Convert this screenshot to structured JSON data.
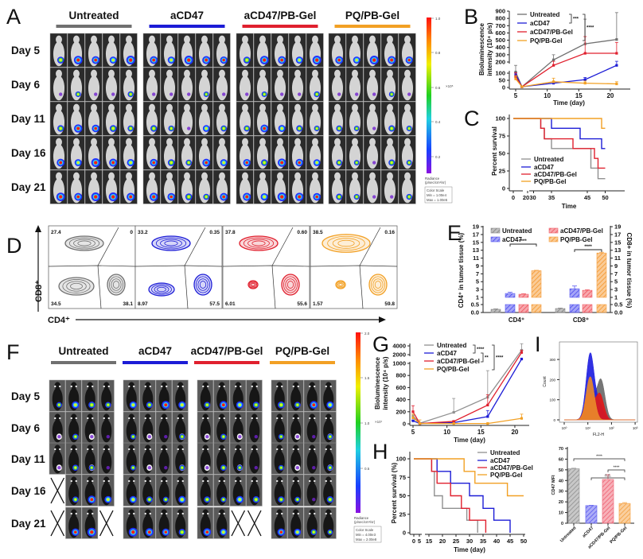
{
  "panel_labels": {
    "A": "A",
    "B": "B",
    "C": "C",
    "D": "D",
    "E": "E",
    "F": "F",
    "G": "G",
    "H": "H",
    "I": "I"
  },
  "groups": [
    "Untreated",
    "aCD47",
    "aCD47/PB-Gel",
    "PQ/PB-Gel"
  ],
  "group_colors": [
    "#707070",
    "#1c1cd6",
    "#e0202e",
    "#f2a024"
  ],
  "panel_a": {
    "days": [
      "Day 5",
      "Day 6",
      "Day 11",
      "Day 16",
      "Day 21"
    ],
    "mice_per_group": 5,
    "colorbar": {
      "ticks": [
        "1.0",
        "0.8",
        "0.6",
        "0.4",
        "0.2"
      ],
      "exponent": "×10⁵",
      "unit_1": "Radiance",
      "unit_2": "(p/sec/cm²/sr)",
      "scale_title": "Color Scale",
      "min": "Min = 1.00e4",
      "max": "Max = 1.00e5"
    }
  },
  "panel_d": {
    "x_label": "CD4⁺",
    "y_label": "CD8⁺",
    "plots": [
      {
        "group": "Untreated",
        "q_upper_left": "27.4",
        "q_upper_right": "0",
        "q_lower_left": "34.5",
        "q_lower_right": "38.1"
      },
      {
        "group": "aCD47",
        "q_upper_left": "33.2",
        "q_upper_right": "0.35",
        "q_lower_left": "8.97",
        "q_lower_right": "57.5"
      },
      {
        "group": "aCD47/PB-Gel",
        "q_upper_left": "37.8",
        "q_upper_right": "0.60",
        "q_lower_left": "6.01",
        "q_lower_right": "55.6"
      },
      {
        "group": "PQ/PB-Gel",
        "q_upper_left": "38.5",
        "q_upper_right": "0.16",
        "q_lower_left": "1.57",
        "q_lower_right": "59.8"
      }
    ]
  },
  "panel_f": {
    "days": [
      "Day 5",
      "Day 6",
      "Day 11",
      "Day 16",
      "Day 21"
    ],
    "mice_per_group": 4,
    "dead_mice": [
      {
        "day": 3,
        "group": 0,
        "mouse": 0
      },
      {
        "day": 4,
        "group": 0,
        "mouse": 0
      },
      {
        "day": 4,
        "group": 0,
        "mouse": 3
      },
      {
        "day": 4,
        "group": 2,
        "mouse": 2
      },
      {
        "day": 4,
        "group": 2,
        "mouse": 3
      }
    ],
    "colorbar": {
      "ticks": [
        "2.0",
        "1.5",
        "1.0",
        "0.5"
      ],
      "exponent": "×10⁷",
      "unit_1": "Radiance",
      "unit_2": "(p/sec/cm²/sr)",
      "scale_title": "Color Scale",
      "min": "Min = 4.00e3",
      "max": "Max = 2.00e8"
    }
  },
  "chart_data": [
    {
      "panel": "B",
      "type": "line",
      "xlabel": "Time (day)",
      "ylabel": [
        "Bioluminescence",
        "intensity (10⁴ p/s)"
      ],
      "x": [
        5,
        6,
        11,
        16,
        21
      ],
      "x_ticks": [
        5,
        10,
        15,
        20
      ],
      "y_ticks": [
        0,
        50,
        100,
        200,
        300,
        400,
        500,
        600,
        700,
        800,
        900
      ],
      "y_axis_break": [
        100,
        200
      ],
      "series": [
        {
          "name": "Untreated",
          "color": "#707070",
          "values": [
            110,
            5,
            230,
            450,
            510
          ],
          "errors": [
            60,
            5,
            70,
            340,
            370
          ]
        },
        {
          "name": "aCD47",
          "color": "#1c1cd6",
          "values": [
            90,
            5,
            30,
            55,
            170
          ],
          "errors": [
            15,
            3,
            10,
            15,
            40
          ]
        },
        {
          "name": "aCD47/PB-Gel",
          "color": "#e0202e",
          "values": [
            75,
            5,
            170,
            320,
            320
          ],
          "errors": [
            30,
            3,
            40,
            230,
            150
          ]
        },
        {
          "name": "PQ/PB-Gel",
          "color": "#f2a024",
          "values": [
            60,
            5,
            40,
            30,
            25
          ],
          "errors": [
            20,
            3,
            25,
            15,
            15
          ]
        }
      ],
      "significance": [
        "***",
        "****"
      ]
    },
    {
      "panel": "C",
      "type": "line",
      "xlabel": "Time",
      "ylabel": "Percent survival",
      "x_ticks": [
        "0",
        "20",
        "30",
        "35",
        "45",
        "50"
      ],
      "y_ticks": [
        0,
        25,
        50,
        75,
        100
      ],
      "series": [
        {
          "name": "Untreated",
          "color": "#909090",
          "steps": [
            [
              0,
              100
            ],
            [
              32,
              86
            ],
            [
              33,
              71
            ],
            [
              35,
              57
            ],
            [
              46,
              29
            ],
            [
              48,
              14
            ],
            [
              50,
              14
            ]
          ]
        },
        {
          "name": "aCD47",
          "color": "#1c1cd6",
          "steps": [
            [
              0,
              100
            ],
            [
              35,
              86
            ],
            [
              43,
              71
            ],
            [
              49,
              57
            ],
            [
              50,
              57
            ]
          ]
        },
        {
          "name": "aCD47/PB-Gel",
          "color": "#e0202e",
          "steps": [
            [
              0,
              100
            ],
            [
              32,
              86
            ],
            [
              33,
              71
            ],
            [
              41,
              57
            ],
            [
              47,
              43
            ],
            [
              48,
              29
            ],
            [
              50,
              29
            ]
          ]
        },
        {
          "name": "PQ/PB-Gel",
          "color": "#f2a024",
          "steps": [
            [
              0,
              100
            ],
            [
              49,
              86
            ],
            [
              50,
              86
            ]
          ]
        }
      ]
    },
    {
      "panel": "E",
      "type": "bar",
      "categories": [
        "CD4⁺",
        "CD8⁺"
      ],
      "ylabel": "CD4⁺ in tumor tissue (%)",
      "ylabel_right": "CD8+ in tumor tissue (%)",
      "y_ticks": [
        "0.0",
        "0.5",
        "1",
        "3",
        "5",
        "7",
        "9",
        "11",
        "13",
        "15",
        "17",
        "19"
      ],
      "y_axis_break": [
        0.5,
        1
      ],
      "series": [
        {
          "name": "Untreated",
          "color": "#8a8a8a",
          "values": [
            0.2,
            0.25
          ],
          "errors": [
            0.03,
            0.03
          ]
        },
        {
          "name": "aCD47",
          "color": "#5a5af0",
          "values": [
            2.0,
            3.2
          ],
          "errors": [
            0.3,
            0.7
          ]
        },
        {
          "name": "aCD47/PB-Gel",
          "color": "#f0606a",
          "values": [
            1.8,
            2.8
          ],
          "errors": [
            0.15,
            0.15
          ]
        },
        {
          "name": "PQ/PB-Gel",
          "color": "#f5a040",
          "values": [
            7.8,
            12.3
          ],
          "errors": [
            0.1,
            0.2
          ]
        }
      ],
      "significance": [
        "****",
        "****"
      ]
    },
    {
      "panel": "G",
      "type": "line",
      "xlabel": "Time (day)",
      "ylabel": [
        "Bioluminescence",
        "intensity (10⁴ p/s)"
      ],
      "x": [
        5,
        6,
        11,
        16,
        21
      ],
      "x_ticks": [
        5,
        10,
        15,
        20
      ],
      "y_ticks": [
        0,
        200,
        400,
        600,
        800,
        1000,
        2000,
        4000
      ],
      "y_axis_break": [
        1000,
        2000
      ],
      "series": [
        {
          "name": "Untreated",
          "color": "#909090",
          "values": [
            130,
            10,
            190,
            440,
            3000
          ],
          "errors": [
            0,
            0,
            230,
            440,
            1500
          ]
        },
        {
          "name": "aCD47",
          "color": "#1c1cd6",
          "values": [
            50,
            5,
            20,
            120,
            1500
          ],
          "errors": [
            10,
            0,
            10,
            100,
            0
          ]
        },
        {
          "name": "aCD47/PB-Gel",
          "color": "#e0202e",
          "values": [
            200,
            5,
            40,
            310,
            2500
          ],
          "errors": [
            100,
            0,
            10,
            170,
            500
          ]
        },
        {
          "name": "PQ/PB-Gel",
          "color": "#f2a024",
          "values": [
            100,
            5,
            5,
            5,
            90
          ],
          "errors": [
            60,
            60,
            0,
            0,
            70
          ]
        }
      ],
      "significance": [
        "****",
        "**",
        "****"
      ]
    },
    {
      "panel": "H",
      "type": "line",
      "xlabel": "Time (day)",
      "ylabel": "Percent survival (%)",
      "x_ticks": [
        0,
        5,
        15,
        20,
        25,
        30,
        35,
        40,
        45,
        50
      ],
      "y_ticks": [
        0,
        25,
        50,
        75,
        100
      ],
      "series": [
        {
          "name": "Untreated",
          "color": "#909090",
          "steps": [
            [
              0,
              100
            ],
            [
              16,
              83
            ],
            [
              17,
              50
            ],
            [
              20,
              33
            ],
            [
              29,
              17
            ],
            [
              33,
              0
            ]
          ]
        },
        {
          "name": "aCD47",
          "color": "#1c1cd6",
          "steps": [
            [
              0,
              100
            ],
            [
              18,
              83
            ],
            [
              23,
              67
            ],
            [
              30,
              50
            ],
            [
              35,
              33
            ],
            [
              39,
              17
            ],
            [
              45,
              0
            ]
          ]
        },
        {
          "name": "aCD47/PB-Gel",
          "color": "#e0202e",
          "steps": [
            [
              0,
              100
            ],
            [
              16,
              83
            ],
            [
              18,
              67
            ],
            [
              23,
              50
            ],
            [
              27,
              33
            ],
            [
              30,
              17
            ],
            [
              36,
              0
            ]
          ]
        },
        {
          "name": "PQ/PB-Gel",
          "color": "#f2a024",
          "steps": [
            [
              0,
              100
            ],
            [
              28,
              83
            ],
            [
              32,
              67
            ],
            [
              44,
              50
            ],
            [
              50,
              50
            ]
          ]
        }
      ]
    },
    {
      "panel": "I",
      "type": "area",
      "xlabel": "FL2-H",
      "ylabel": "Count",
      "x_scale": "log",
      "x_ticks": [
        "10⁰",
        "10¹",
        "10²",
        "10³"
      ],
      "y_ticks": [
        0,
        100,
        200,
        300
      ],
      "series": [
        {
          "color": "#6a6a6a",
          "peaks": [
            [
              1.55,
              200
            ],
            [
              1.1,
              150
            ]
          ]
        },
        {
          "color": "#2020e0",
          "peaks": [
            [
              1.1,
              330
            ],
            [
              1.5,
              70
            ]
          ]
        },
        {
          "color": "#e01818",
          "peaks": [
            [
              1.5,
              130
            ],
            [
              1.05,
              130
            ]
          ]
        },
        {
          "color": "#e8882a",
          "peaks": [
            [
              1.1,
              215
            ]
          ]
        }
      ]
    },
    {
      "panel": "I",
      "type": "bar",
      "ylabel": "CD47 MFI",
      "categories": [
        "Untreated",
        "aCD47",
        "aCD47/PB-Gel",
        "PQ/PB-Gel"
      ],
      "values": [
        51,
        16.5,
        41,
        18.5
      ],
      "errors": [
        0.5,
        0.3,
        4.5,
        0.8
      ],
      "colors": [
        "#9a9a9a",
        "#6a6af0",
        "#f07080",
        "#f5a850"
      ],
      "y_ticks": [
        0,
        10,
        20,
        30,
        40,
        50,
        60,
        70
      ],
      "ylim": [
        0,
        70
      ],
      "significance": [
        "****",
        "****",
        "n.s."
      ]
    }
  ]
}
